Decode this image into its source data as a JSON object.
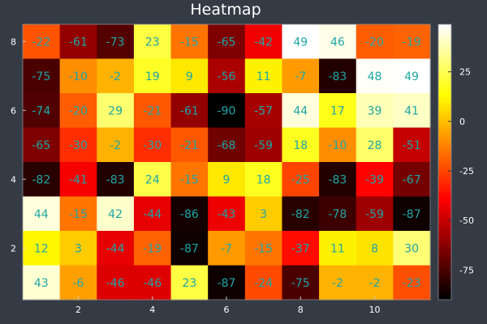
{
  "chart_data": {
    "type": "heatmap",
    "title": "Heatmap",
    "xlabel": "",
    "ylabel": "",
    "x": [
      1,
      2,
      3,
      4,
      5,
      6,
      7,
      8,
      9,
      10,
      11
    ],
    "y": [
      1,
      2,
      3,
      4,
      5,
      6,
      7,
      8
    ],
    "x_ticks": [
      2,
      4,
      6,
      8,
      10
    ],
    "y_ticks": [
      2,
      4,
      6,
      8
    ],
    "colorbar_ticks": [
      -75,
      -50,
      -25,
      0,
      25
    ],
    "value_range": [
      -90,
      49
    ],
    "colormap": "hot",
    "label_color": "#1fa6a6",
    "rows_top_to_bottom": [
      [
        -22,
        -61,
        -73,
        23,
        -15,
        -65,
        -42,
        49,
        46,
        -20,
        -19
      ],
      [
        -75,
        -10,
        -2,
        19,
        9,
        -56,
        11,
        -7,
        -83,
        48,
        49
      ],
      [
        -74,
        -20,
        29,
        -21,
        -61,
        -90,
        -57,
        44,
        17,
        39,
        41
      ],
      [
        -65,
        -30,
        -2,
        -30,
        -21,
        -68,
        -59,
        18,
        -10,
        28,
        -51
      ],
      [
        -82,
        -41,
        -83,
        24,
        -15,
        9,
        18,
        -25,
        -83,
        -39,
        -67
      ],
      [
        44,
        -15,
        42,
        -44,
        -86,
        -43,
        3,
        -82,
        -78,
        -59,
        -87
      ],
      [
        12,
        3,
        -44,
        -19,
        -87,
        -7,
        -15,
        -37,
        11,
        8,
        30
      ],
      [
        43,
        -6,
        -46,
        -46,
        23,
        -87,
        -24,
        -75,
        -2,
        -2,
        -23
      ]
    ]
  }
}
